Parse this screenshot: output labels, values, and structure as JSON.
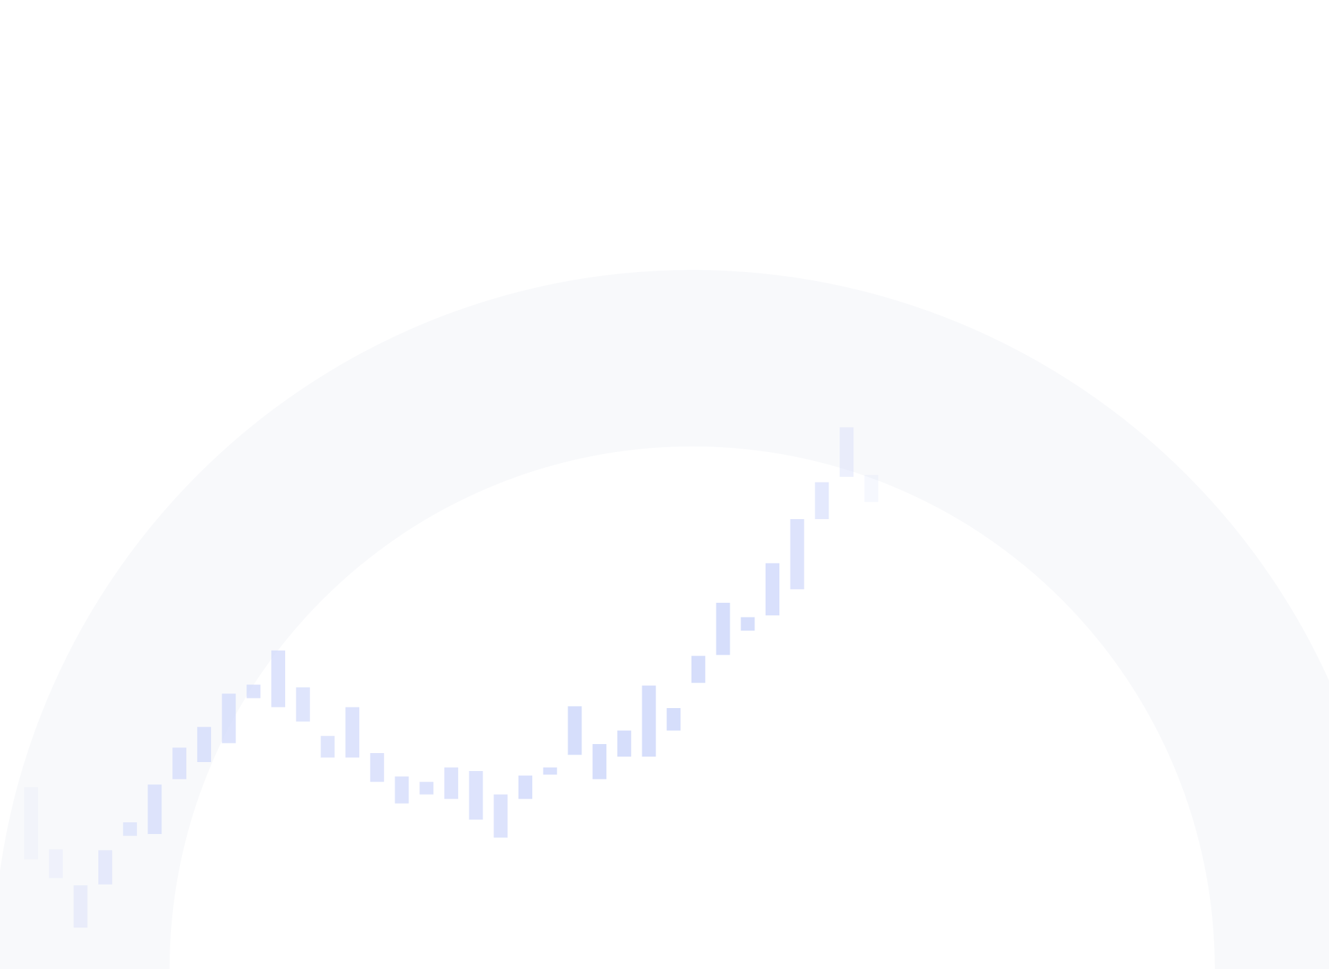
{
  "chart_data": {
    "type": "candlestick",
    "title": "",
    "xlabel": "",
    "ylabel": "",
    "grid": false,
    "legend": "none",
    "ylim": [
      0,
      100
    ],
    "candles": [
      {
        "low": 12.2,
        "high": 20.2,
        "opacity": 0.15
      },
      {
        "low": 10.1,
        "high": 13.3,
        "opacity": 0.25
      },
      {
        "low": 4.6,
        "high": 9.3,
        "opacity": 0.4
      },
      {
        "low": 9.4,
        "high": 13.2,
        "opacity": 0.5
      },
      {
        "low": 14.8,
        "high": 16.3,
        "opacity": 0.6
      },
      {
        "low": 15.0,
        "high": 20.5,
        "opacity": 0.7
      },
      {
        "low": 21.1,
        "high": 24.6,
        "opacity": 0.7
      },
      {
        "low": 23.0,
        "high": 26.9,
        "opacity": 0.75
      },
      {
        "low": 25.1,
        "high": 30.6,
        "opacity": 0.75
      },
      {
        "low": 30.1,
        "high": 31.6,
        "opacity": 0.75
      },
      {
        "low": 29.1,
        "high": 35.4,
        "opacity": 0.75
      },
      {
        "low": 27.5,
        "high": 31.3,
        "opacity": 0.7
      },
      {
        "low": 23.5,
        "high": 25.9,
        "opacity": 0.7
      },
      {
        "low": 23.5,
        "high": 29.1,
        "opacity": 0.75
      },
      {
        "low": 20.8,
        "high": 24.0,
        "opacity": 0.75
      },
      {
        "low": 18.4,
        "high": 21.4,
        "opacity": 0.75
      },
      {
        "low": 19.4,
        "high": 20.8,
        "opacity": 0.75
      },
      {
        "low": 18.9,
        "high": 22.4,
        "opacity": 0.75
      },
      {
        "low": 16.6,
        "high": 22.0,
        "opacity": 0.75
      },
      {
        "low": 14.6,
        "high": 19.4,
        "opacity": 0.75
      },
      {
        "low": 18.9,
        "high": 21.5,
        "opacity": 0.85
      },
      {
        "low": 21.6,
        "high": 22.4,
        "opacity": 0.85
      },
      {
        "low": 23.8,
        "high": 29.2,
        "opacity": 0.9
      },
      {
        "low": 21.1,
        "high": 25.0,
        "opacity": 0.9
      },
      {
        "low": 23.6,
        "high": 26.5,
        "opacity": 0.9
      },
      {
        "low": 23.6,
        "high": 31.5,
        "opacity": 0.9
      },
      {
        "low": 26.5,
        "high": 29.0,
        "opacity": 0.9
      },
      {
        "low": 31.8,
        "high": 34.8,
        "opacity": 0.9
      },
      {
        "low": 34.9,
        "high": 40.7,
        "opacity": 0.9
      },
      {
        "low": 37.6,
        "high": 39.1,
        "opacity": 0.9
      },
      {
        "low": 39.3,
        "high": 45.1,
        "opacity": 0.85
      },
      {
        "low": 42.2,
        "high": 50.0,
        "opacity": 0.75
      },
      {
        "low": 50.0,
        "high": 54.1,
        "opacity": 0.6
      },
      {
        "low": 54.7,
        "high": 60.2,
        "opacity": 0.4
      },
      {
        "low": 51.9,
        "high": 54.9,
        "opacity": 0.2
      }
    ],
    "colors": {
      "background": "#ffffff",
      "ring": "#f8f9fb",
      "candle": "#d2dafb"
    }
  }
}
